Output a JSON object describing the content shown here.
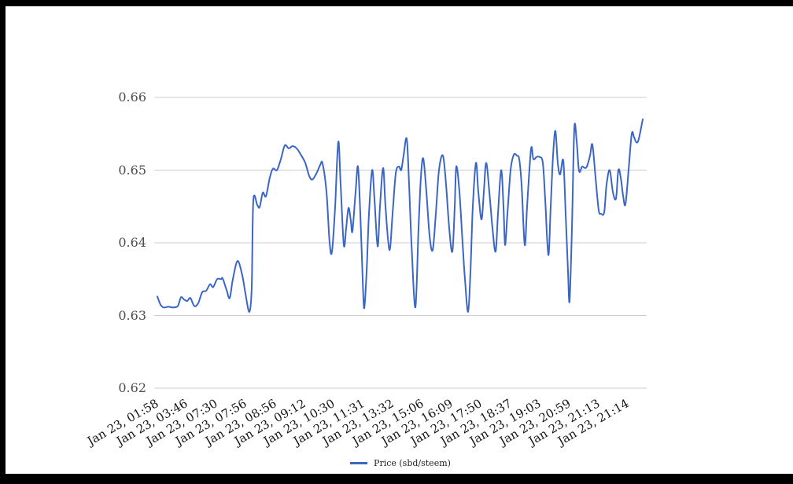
{
  "page": {
    "background": "#ffffff",
    "frame_color": "#000000"
  },
  "chart_data": {
    "type": "line",
    "title": "",
    "xlabel": "",
    "ylabel": "",
    "ylim": [
      0.62,
      0.66
    ],
    "grid": true,
    "legend_position": "bottom",
    "line_color": "#3b66c5",
    "grid_color": "#cccccc",
    "y_tick_color": "#4d4d4d",
    "x_tick_color": "#141414",
    "y_ticks": [
      "0.66",
      "0.65",
      "0.64",
      "0.63",
      "0.62"
    ],
    "x_tick_labels": [
      "Jan 23, 01:58",
      "Jan 23, 03:46",
      "Jan 23, 07:30",
      "Jan 23, 07:56",
      "Jan 23, 08:56",
      "Jan 23, 09:12",
      "Jan 23, 10:30",
      "Jan 23, 11:31",
      "Jan 23, 13:32",
      "Jan 23, 15:06",
      "Jan 23, 16:09",
      "Jan 23, 17:50",
      "Jan 23, 18:37",
      "Jan 23, 19:03",
      "Jan 23, 20:59",
      "Jan 23, 21:13",
      "Jan 23, 21:14"
    ],
    "legend": {
      "entries": [
        "Price (sbd/steem)"
      ]
    },
    "series": [
      {
        "name": "Price (sbd/steem)",
        "points": [
          [
            4,
            0.6326
          ],
          [
            8,
            0.6315
          ],
          [
            12,
            0.6311
          ],
          [
            18,
            0.6312
          ],
          [
            24,
            0.6311
          ],
          [
            30,
            0.6313
          ],
          [
            34,
            0.6325
          ],
          [
            38,
            0.6322
          ],
          [
            42,
            0.632
          ],
          [
            46,
            0.6324
          ],
          [
            51,
            0.6313
          ],
          [
            56,
            0.6317
          ],
          [
            61,
            0.6332
          ],
          [
            66,
            0.6334
          ],
          [
            71,
            0.6343
          ],
          [
            75,
            0.6339
          ],
          [
            80,
            0.635
          ],
          [
            85,
            0.635
          ],
          [
            87,
            0.6351
          ],
          [
            92,
            0.6335
          ],
          [
            96,
            0.6324
          ],
          [
            100,
            0.635
          ],
          [
            106,
            0.6375
          ],
          [
            112,
            0.6355
          ],
          [
            116,
            0.633
          ],
          [
            121,
            0.6305
          ],
          [
            124,
            0.634
          ],
          [
            126,
            0.6458
          ],
          [
            131,
            0.6452
          ],
          [
            134,
            0.6449
          ],
          [
            138,
            0.6469
          ],
          [
            142,
            0.6464
          ],
          [
            147,
            0.649
          ],
          [
            151,
            0.6502
          ],
          [
            156,
            0.65
          ],
          [
            161,
            0.6515
          ],
          [
            166,
            0.6534
          ],
          [
            171,
            0.653
          ],
          [
            176,
            0.6533
          ],
          [
            181,
            0.653
          ],
          [
            186,
            0.6522
          ],
          [
            192,
            0.651
          ],
          [
            197,
            0.6492
          ],
          [
            201,
            0.6487
          ],
          [
            206,
            0.6495
          ],
          [
            211,
            0.6507
          ],
          [
            214,
            0.6509
          ],
          [
            219,
            0.647
          ],
          [
            223,
            0.64
          ],
          [
            226,
            0.6388
          ],
          [
            230,
            0.645
          ],
          [
            234,
            0.6539
          ],
          [
            237,
            0.648
          ],
          [
            241,
            0.6397
          ],
          [
            244,
            0.642
          ],
          [
            247,
            0.6448
          ],
          [
            250,
            0.643
          ],
          [
            252,
            0.6416
          ],
          [
            256,
            0.647
          ],
          [
            259,
            0.6505
          ],
          [
            262,
            0.644
          ],
          [
            265,
            0.635
          ],
          [
            267,
            0.631
          ],
          [
            270,
            0.636
          ],
          [
            273,
            0.644
          ],
          [
            277,
            0.65
          ],
          [
            280,
            0.646
          ],
          [
            284,
            0.6395
          ],
          [
            287,
            0.645
          ],
          [
            291,
            0.6503
          ],
          [
            294,
            0.645
          ],
          [
            299,
            0.639
          ],
          [
            303,
            0.644
          ],
          [
            307,
            0.6495
          ],
          [
            311,
            0.6505
          ],
          [
            314,
            0.65
          ],
          [
            317,
            0.652
          ],
          [
            321,
            0.6543
          ],
          [
            324,
            0.648
          ],
          [
            327,
            0.64
          ],
          [
            332,
            0.6311
          ],
          [
            336,
            0.642
          ],
          [
            339,
            0.649
          ],
          [
            342,
            0.6516
          ],
          [
            346,
            0.647
          ],
          [
            350,
            0.641
          ],
          [
            354,
            0.639
          ],
          [
            358,
            0.644
          ],
          [
            362,
            0.65
          ],
          [
            367,
            0.652
          ],
          [
            371,
            0.648
          ],
          [
            375,
            0.642
          ],
          [
            379,
            0.6388
          ],
          [
            382,
            0.645
          ],
          [
            384,
            0.6505
          ],
          [
            388,
            0.647
          ],
          [
            392,
            0.64
          ],
          [
            395,
            0.635
          ],
          [
            399,
            0.6305
          ],
          [
            402,
            0.636
          ],
          [
            405,
            0.645
          ],
          [
            409,
            0.651
          ],
          [
            412,
            0.647
          ],
          [
            416,
            0.6432
          ],
          [
            419,
            0.647
          ],
          [
            422,
            0.651
          ],
          [
            426,
            0.647
          ],
          [
            430,
            0.642
          ],
          [
            434,
            0.6388
          ],
          [
            437,
            0.644
          ],
          [
            441,
            0.65
          ],
          [
            444,
            0.645
          ],
          [
            446,
            0.6397
          ],
          [
            449,
            0.644
          ],
          [
            453,
            0.65
          ],
          [
            457,
            0.6521
          ],
          [
            461,
            0.652
          ],
          [
            464,
            0.6515
          ],
          [
            467,
            0.648
          ],
          [
            471,
            0.6397
          ],
          [
            474,
            0.645
          ],
          [
            479,
            0.6529
          ],
          [
            482,
            0.6515
          ],
          [
            486,
            0.6518
          ],
          [
            490,
            0.6518
          ],
          [
            494,
            0.651
          ],
          [
            497,
            0.646
          ],
          [
            501,
            0.6383
          ],
          [
            504,
            0.645
          ],
          [
            507,
            0.652
          ],
          [
            510,
            0.6554
          ],
          [
            513,
            0.651
          ],
          [
            516,
            0.6494
          ],
          [
            520,
            0.6513
          ],
          [
            523,
            0.644
          ],
          [
            526,
            0.636
          ],
          [
            528,
            0.632
          ],
          [
            531,
            0.642
          ],
          [
            534,
            0.6557
          ],
          [
            537,
            0.654
          ],
          [
            540,
            0.6499
          ],
          [
            544,
            0.6505
          ],
          [
            547,
            0.6503
          ],
          [
            550,
            0.6505
          ],
          [
            554,
            0.652
          ],
          [
            557,
            0.6535
          ],
          [
            561,
            0.649
          ],
          [
            565,
            0.6445
          ],
          [
            568,
            0.644
          ],
          [
            572,
            0.6442
          ],
          [
            575,
            0.648
          ],
          [
            579,
            0.65
          ],
          [
            583,
            0.647
          ],
          [
            587,
            0.6461
          ],
          [
            590,
            0.65
          ],
          [
            593,
            0.649
          ],
          [
            596,
            0.6465
          ],
          [
            599,
            0.6453
          ],
          [
            603,
            0.65
          ],
          [
            607,
            0.655
          ],
          [
            610,
            0.6545
          ],
          [
            613,
            0.6538
          ],
          [
            616,
            0.6543
          ],
          [
            621,
            0.657
          ]
        ]
      }
    ]
  }
}
